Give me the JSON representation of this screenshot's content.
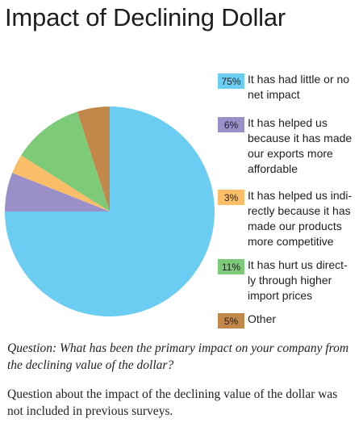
{
  "chart_data": {
    "type": "pie",
    "title": "Impact of Declining Dollar",
    "slices": [
      {
        "value_label": "75%",
        "value": 75,
        "label": "It has had little or no net impact",
        "color": "#6ccdf3"
      },
      {
        "value_label": "6%",
        "value": 6,
        "label": "It has helped us because it has made our exports more affordable",
        "color": "#9b8fca"
      },
      {
        "value_label": "3%",
        "value": 3,
        "label": "It has helped us indi-rectly because it has made our products more competitive",
        "color": "#f9be67"
      },
      {
        "value_label": "11%",
        "value": 11,
        "label": "It has hurt us direct-ly through higher import prices",
        "color": "#7dca78"
      },
      {
        "value_label": "5%",
        "value": 5,
        "label": "Other",
        "color": "#c2884a"
      }
    ]
  },
  "legend_lines": [
    [
      "It has had little or no",
      "net impact"
    ],
    [
      "It has helped us",
      "because it has made",
      "our exports more",
      "affordable"
    ],
    [
      "It has helped us indi-",
      "rectly because it has",
      "made our products",
      "more competitive"
    ],
    [
      "It has hurt us direct-",
      "ly through higher",
      "import prices"
    ],
    [
      "Other"
    ]
  ],
  "question": "Question: What has been the primary impact on your company from the declining value of the dollar?",
  "note": "Question about the impact of the declining value of the dollar was not included in previous surveys."
}
